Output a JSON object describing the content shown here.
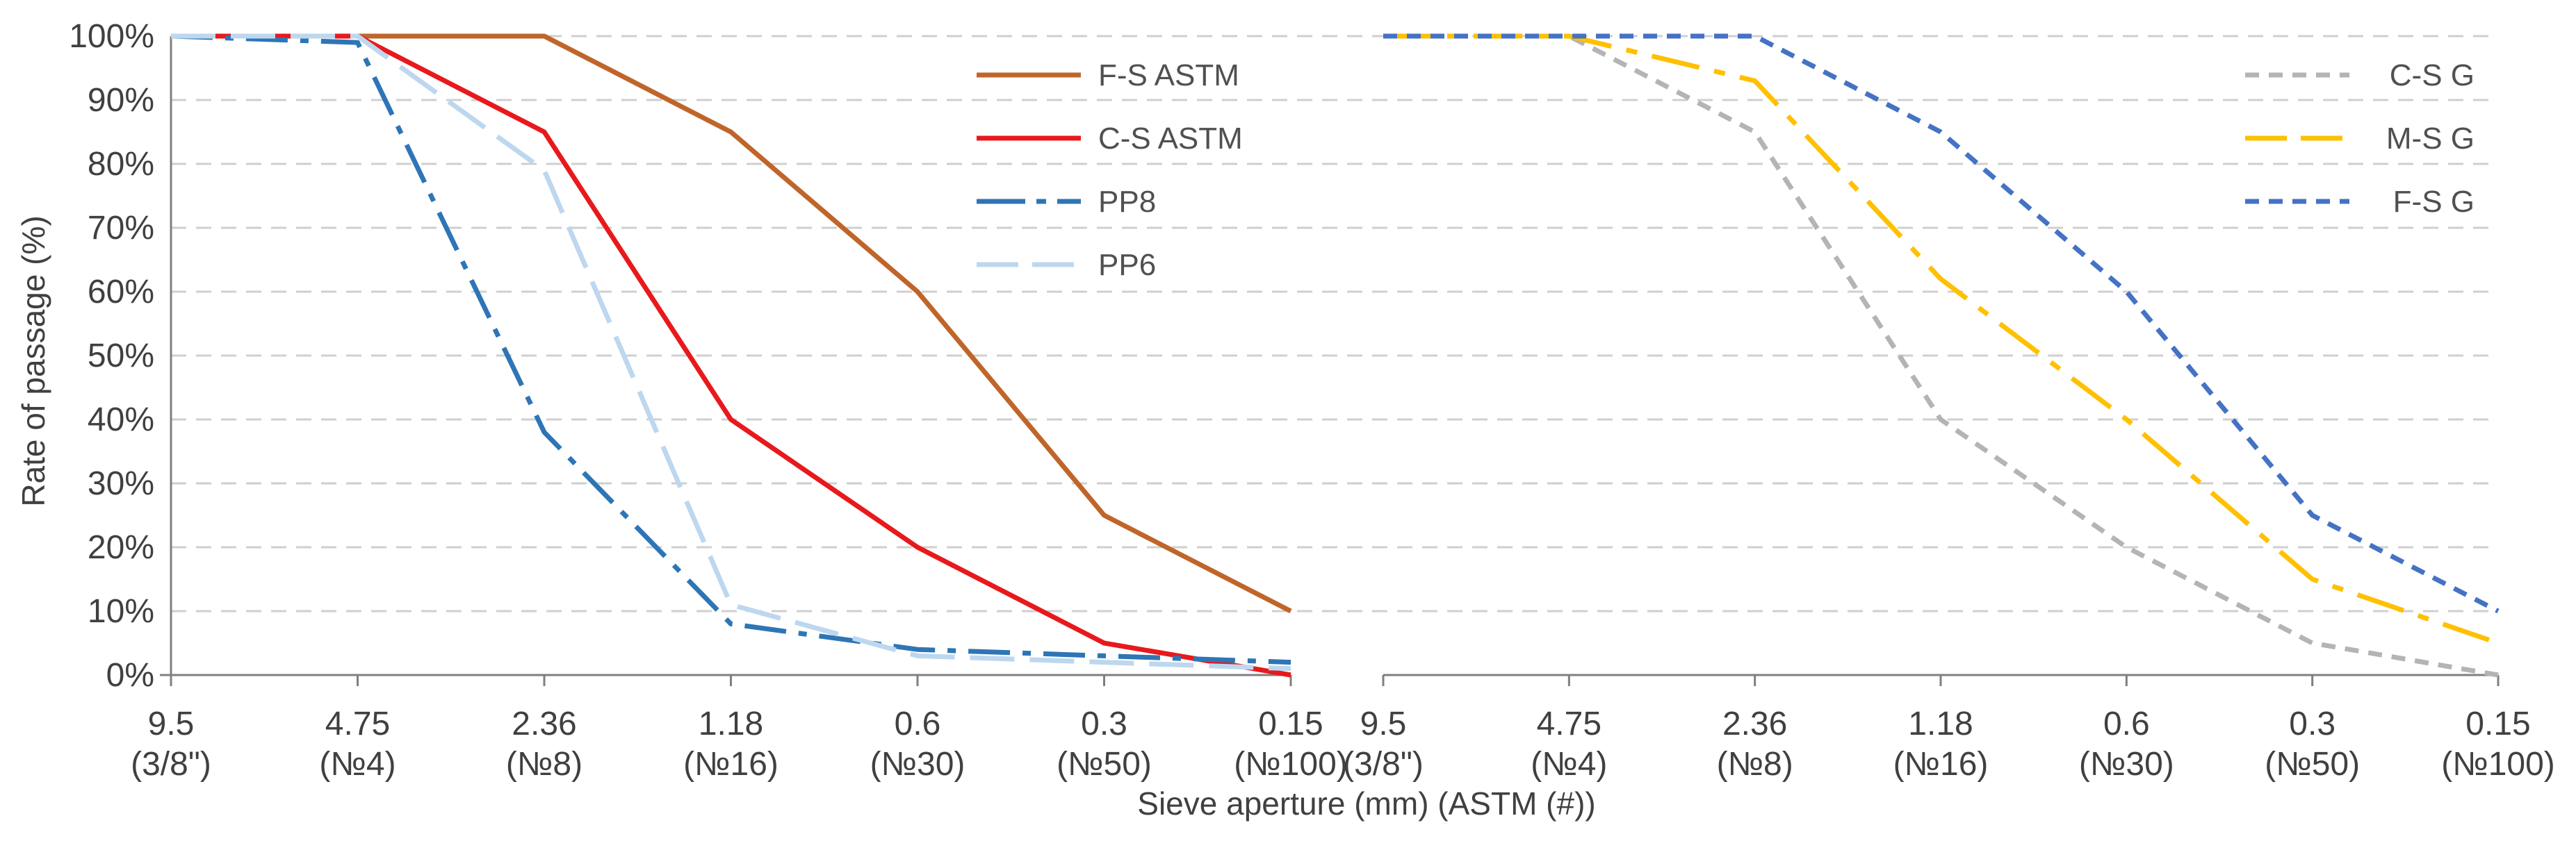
{
  "chart_data": {
    "type": "line",
    "ylabel": "Rate of passage (%)",
    "xlabel": "Sieve aperture (mm) (ASTM (#))",
    "ylim": [
      0,
      100
    ],
    "y_ticks": [
      "0%",
      "10%",
      "20%",
      "30%",
      "40%",
      "50%",
      "60%",
      "70%",
      "80%",
      "90%",
      "100%"
    ],
    "grid": "horizontal dashed",
    "panels": [
      {
        "name": "left",
        "categories": [
          {
            "mm": "9.5",
            "astm": "(3/8\")"
          },
          {
            "mm": "4.75",
            "astm": "(№4)"
          },
          {
            "mm": "2.36",
            "astm": "(№8)"
          },
          {
            "mm": "1.18",
            "astm": "(№16)"
          },
          {
            "mm": "0.6",
            "astm": "(№30)"
          },
          {
            "mm": "0.3",
            "astm": "(№50)"
          },
          {
            "mm": "0.15",
            "astm": "(№100)"
          }
        ],
        "legend_position": "top-center",
        "series": [
          {
            "name": "F-S ASTM",
            "color": "#C0652A",
            "style": "solid",
            "values": [
              100,
              100,
              100,
              85,
              60,
              25,
              10
            ]
          },
          {
            "name": "C-S ASTM",
            "color": "#E8191C",
            "style": "solid",
            "values": [
              100,
              100,
              85,
              40,
              20,
              5,
              0
            ]
          },
          {
            "name": "PP8",
            "color": "#2E75B6",
            "style": "dash-dot",
            "values": [
              100,
              99,
              38,
              8,
              4,
              3,
              2
            ]
          },
          {
            "name": "PP6",
            "color": "#BDD7EE",
            "style": "long-dash",
            "values": [
              100,
              100,
              79,
              11,
              3,
              2,
              1
            ]
          }
        ]
      },
      {
        "name": "right",
        "categories": [
          {
            "mm": "9.5",
            "astm": "(3/8\")"
          },
          {
            "mm": "4.75",
            "astm": "(№4)"
          },
          {
            "mm": "2.36",
            "astm": "(№8)"
          },
          {
            "mm": "1.18",
            "astm": "(№16)"
          },
          {
            "mm": "0.6",
            "astm": "(№30)"
          },
          {
            "mm": "0.3",
            "astm": "(№50)"
          },
          {
            "mm": "0.15",
            "astm": "(№100)"
          }
        ],
        "legend_position": "top-right",
        "series": [
          {
            "name": "C-S G",
            "color": "#B4B4B4",
            "style": "short-dash",
            "values": [
              100,
              100,
              85,
              40,
              20,
              5,
              0
            ]
          },
          {
            "name": "M-S G",
            "color": "#FFC000",
            "style": "long-dash-dot",
            "values": [
              100,
              100,
              93,
              62,
              40,
              15,
              5
            ]
          },
          {
            "name": "F-S G",
            "color": "#4472C4",
            "style": "short-dash",
            "values": [
              100,
              100,
              100,
              85,
              60,
              25,
              10
            ]
          }
        ]
      }
    ]
  }
}
